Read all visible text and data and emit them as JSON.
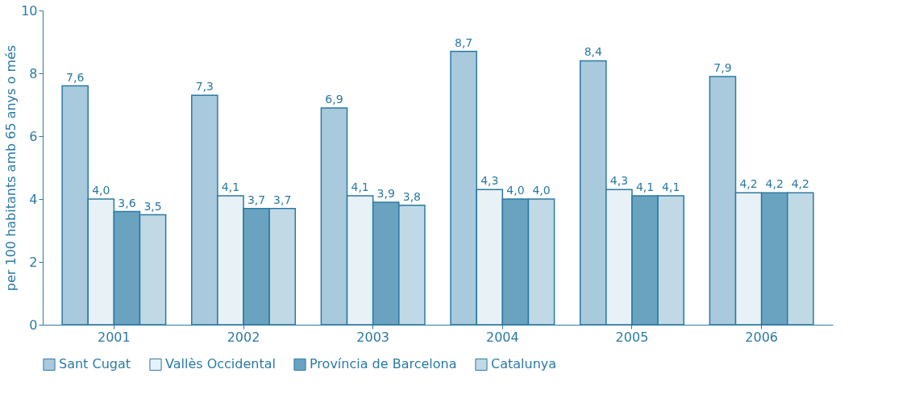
{
  "chart_data": {
    "type": "bar",
    "ylabel": "per 100 habitants amb 65 anys o més",
    "categories": [
      "2001",
      "2002",
      "2003",
      "2004",
      "2005",
      "2006"
    ],
    "series": [
      {
        "name": "Sant Cugat",
        "color": "#a9c9dc",
        "values": [
          7.6,
          7.3,
          6.9,
          8.7,
          8.4,
          7.9
        ],
        "value_labels": [
          "7,6",
          "7,3",
          "6,9",
          "8,7",
          "8,4",
          "7,9"
        ]
      },
      {
        "name": "Vallès Occidental",
        "color": "#e8f1f5",
        "values": [
          4.0,
          4.1,
          4.1,
          4.3,
          4.3,
          4.2
        ],
        "value_labels": [
          "4,0",
          "4,1",
          "4,1",
          "4,3",
          "4,3",
          "4,2"
        ]
      },
      {
        "name": "Província de Barcelona",
        "color": "#6aa3c0",
        "values": [
          3.6,
          3.7,
          3.9,
          4.0,
          4.1,
          4.2
        ],
        "value_labels": [
          "3,6",
          "3,7",
          "3,9",
          "4,0",
          "4,1",
          "4,2"
        ]
      },
      {
        "name": "Catalunya",
        "color": "#c0d9e5",
        "values": [
          3.5,
          3.7,
          3.8,
          4.0,
          4.1,
          4.2
        ],
        "value_labels": [
          "3,5",
          "3,7",
          "3,8",
          "4,0",
          "4,1",
          "4,2"
        ]
      }
    ],
    "ylim": [
      0,
      10
    ],
    "yticks": [
      0,
      2,
      4,
      6,
      8,
      10
    ],
    "legend": "bottom",
    "grid": false
  }
}
